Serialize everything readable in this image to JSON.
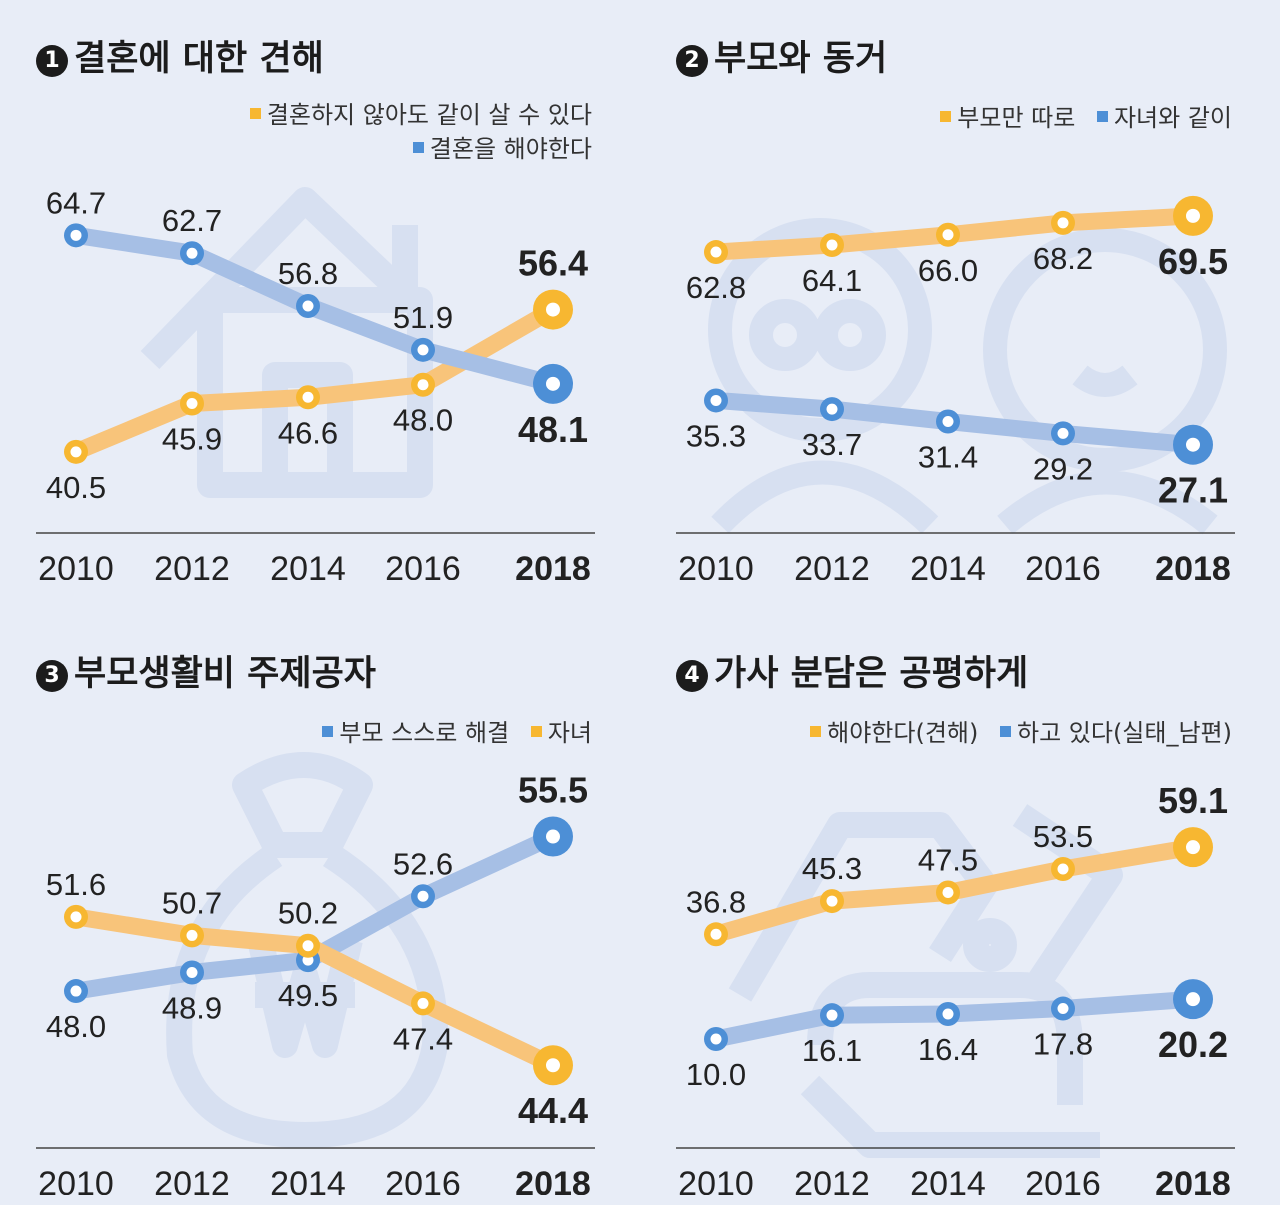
{
  "colors": {
    "orange": "#f7b731",
    "orange_line": "#f8c47a",
    "blue": "#4d8fd6",
    "blue_line": "#a6bfe5",
    "background": "#e8edf7"
  },
  "chart_data": [
    {
      "type": "line",
      "badge": "1",
      "title": "결혼에 대한 견해",
      "categories": [
        "2010",
        "2012",
        "2014",
        "2016",
        "2018"
      ],
      "series": [
        {
          "name": "결혼하지 않아도 같이 살 수 있다",
          "color": "orange",
          "values": [
            40.5,
            45.9,
            46.6,
            48.0,
            56.4
          ],
          "labels": [
            "40.5",
            "45.9",
            "46.6",
            "48.0",
            "56.4"
          ],
          "label_pos": [
            "below",
            "below",
            "below",
            "below",
            "above"
          ]
        },
        {
          "name": "결혼을 해야한다",
          "color": "blue",
          "values": [
            64.7,
            62.7,
            56.8,
            51.9,
            48.1
          ],
          "labels": [
            "64.7",
            "62.7",
            "56.8",
            "51.9",
            "48.1"
          ],
          "label_pos": [
            "above",
            "above",
            "above",
            "above",
            "below"
          ]
        }
      ],
      "legend_layout": "stacked",
      "ylim": [
        34,
        72
      ]
    },
    {
      "type": "line",
      "badge": "2",
      "title": "부모와 동거",
      "categories": [
        "2010",
        "2012",
        "2014",
        "2016",
        "2018"
      ],
      "series": [
        {
          "name": "부모만 따로",
          "color": "orange",
          "values": [
            62.8,
            64.1,
            66.0,
            68.2,
            69.5
          ],
          "labels": [
            "62.8",
            "64.1",
            "66.0",
            "68.2",
            "69.5"
          ],
          "label_pos": [
            "below",
            "below",
            "below",
            "below",
            "below"
          ]
        },
        {
          "name": "자녀와 같이",
          "color": "blue",
          "values": [
            35.3,
            33.7,
            31.4,
            29.2,
            27.1
          ],
          "labels": [
            "35.3",
            "33.7",
            "31.4",
            "29.2",
            "27.1"
          ],
          "label_pos": [
            "below",
            "below",
            "below",
            "below",
            "below"
          ]
        }
      ],
      "legend_layout": "inline",
      "ylim": [
        15,
        78
      ]
    },
    {
      "type": "line",
      "badge": "3",
      "title": "부모생활비 주제공자",
      "categories": [
        "2010",
        "2012",
        "2014",
        "2016",
        "2018"
      ],
      "series": [
        {
          "name": "부모 스스로 해결",
          "color": "blue",
          "values": [
            48.0,
            48.9,
            49.5,
            52.6,
            55.5
          ],
          "labels": [
            "48.0",
            "48.9",
            "49.5",
            "52.6",
            "55.5"
          ],
          "label_pos": [
            "below",
            "below",
            "below",
            "above",
            "above"
          ]
        },
        {
          "name": "자녀",
          "color": "orange",
          "values": [
            51.6,
            50.7,
            50.2,
            47.4,
            44.4
          ],
          "labels": [
            "51.6",
            "50.7",
            "50.2",
            "47.4",
            "44.4"
          ],
          "label_pos": [
            "above",
            "above",
            "above",
            "below",
            "below"
          ]
        }
      ],
      "legend_layout": "inline",
      "ylim": [
        41.5,
        58
      ]
    },
    {
      "type": "line",
      "badge": "4",
      "title": "가사 분담은 공평하게",
      "categories": [
        "2010",
        "2012",
        "2014",
        "2016",
        "2018"
      ],
      "series": [
        {
          "name": "해야한다(견해)",
          "color": "orange",
          "values": [
            36.8,
            45.3,
            47.5,
            53.5,
            59.1
          ],
          "labels": [
            "36.8",
            "45.3",
            "47.5",
            "53.5",
            "59.1"
          ],
          "label_pos": [
            "above",
            "above",
            "above",
            "above",
            "above"
          ]
        },
        {
          "name": "하고 있다(실태_남편)",
          "color": "blue",
          "values": [
            10.0,
            16.1,
            16.4,
            17.8,
            20.2
          ],
          "labels": [
            "10.0",
            "16.1",
            "16.4",
            "17.8",
            "20.2"
          ],
          "label_pos": [
            "below",
            "below",
            "below",
            "below",
            "below"
          ]
        }
      ],
      "legend_layout": "inline",
      "ylim": [
        -12,
        75
      ]
    }
  ]
}
